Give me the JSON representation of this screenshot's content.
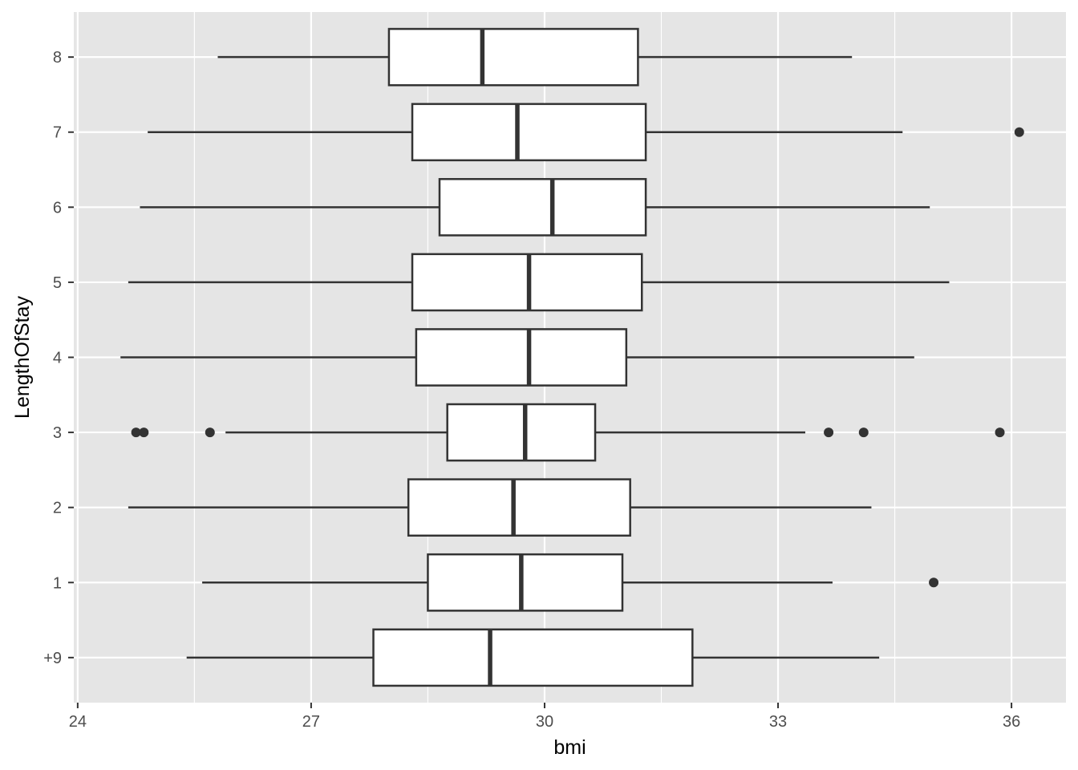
{
  "chart_data": {
    "type": "boxplot",
    "orientation": "horizontal",
    "title": "",
    "xlabel": "bmi",
    "ylabel": "LengthOfStay",
    "xlim": [
      23.95,
      36.7
    ],
    "x_ticks": [
      24,
      27,
      30,
      33,
      36
    ],
    "x_tick_labels": [
      "24",
      "27",
      "30",
      "33",
      "36"
    ],
    "x_minor_ticks": [
      25.5,
      28.5,
      31.5,
      34.5
    ],
    "categories": [
      "+9",
      "1",
      "2",
      "3",
      "4",
      "5",
      "6",
      "7",
      "8"
    ],
    "boxes": [
      {
        "category": "+9",
        "whisker_low": 25.4,
        "q1": 27.8,
        "median": 29.3,
        "q3": 31.9,
        "whisker_high": 34.3,
        "outliers": []
      },
      {
        "category": "1",
        "whisker_low": 25.6,
        "q1": 28.5,
        "median": 29.7,
        "q3": 31.0,
        "whisker_high": 33.7,
        "outliers": [
          35.0
        ]
      },
      {
        "category": "2",
        "whisker_low": 24.65,
        "q1": 28.25,
        "median": 29.6,
        "q3": 31.1,
        "whisker_high": 34.2,
        "outliers": []
      },
      {
        "category": "3",
        "whisker_low": 25.9,
        "q1": 28.75,
        "median": 29.75,
        "q3": 30.65,
        "whisker_high": 33.35,
        "outliers": [
          24.75,
          24.85,
          25.7,
          33.65,
          34.1,
          35.85
        ]
      },
      {
        "category": "4",
        "whisker_low": 24.55,
        "q1": 28.35,
        "median": 29.8,
        "q3": 31.05,
        "whisker_high": 34.75,
        "outliers": []
      },
      {
        "category": "5",
        "whisker_low": 24.65,
        "q1": 28.3,
        "median": 29.8,
        "q3": 31.25,
        "whisker_high": 35.2,
        "outliers": []
      },
      {
        "category": "6",
        "whisker_low": 24.8,
        "q1": 28.65,
        "median": 30.1,
        "q3": 31.3,
        "whisker_high": 34.95,
        "outliers": []
      },
      {
        "category": "7",
        "whisker_low": 24.9,
        "q1": 28.3,
        "median": 29.65,
        "q3": 31.3,
        "whisker_high": 34.6,
        "outliers": [
          36.1
        ]
      },
      {
        "category": "8",
        "whisker_low": 25.8,
        "q1": 28.0,
        "median": 29.2,
        "q3": 31.2,
        "whisker_high": 33.95,
        "outliers": []
      }
    ],
    "grid": true,
    "legend": "none",
    "colors": {
      "panel": "#e5e5e5",
      "box_fill": "#ffffff",
      "line": "#333333",
      "text": "#4d4d4d"
    }
  }
}
